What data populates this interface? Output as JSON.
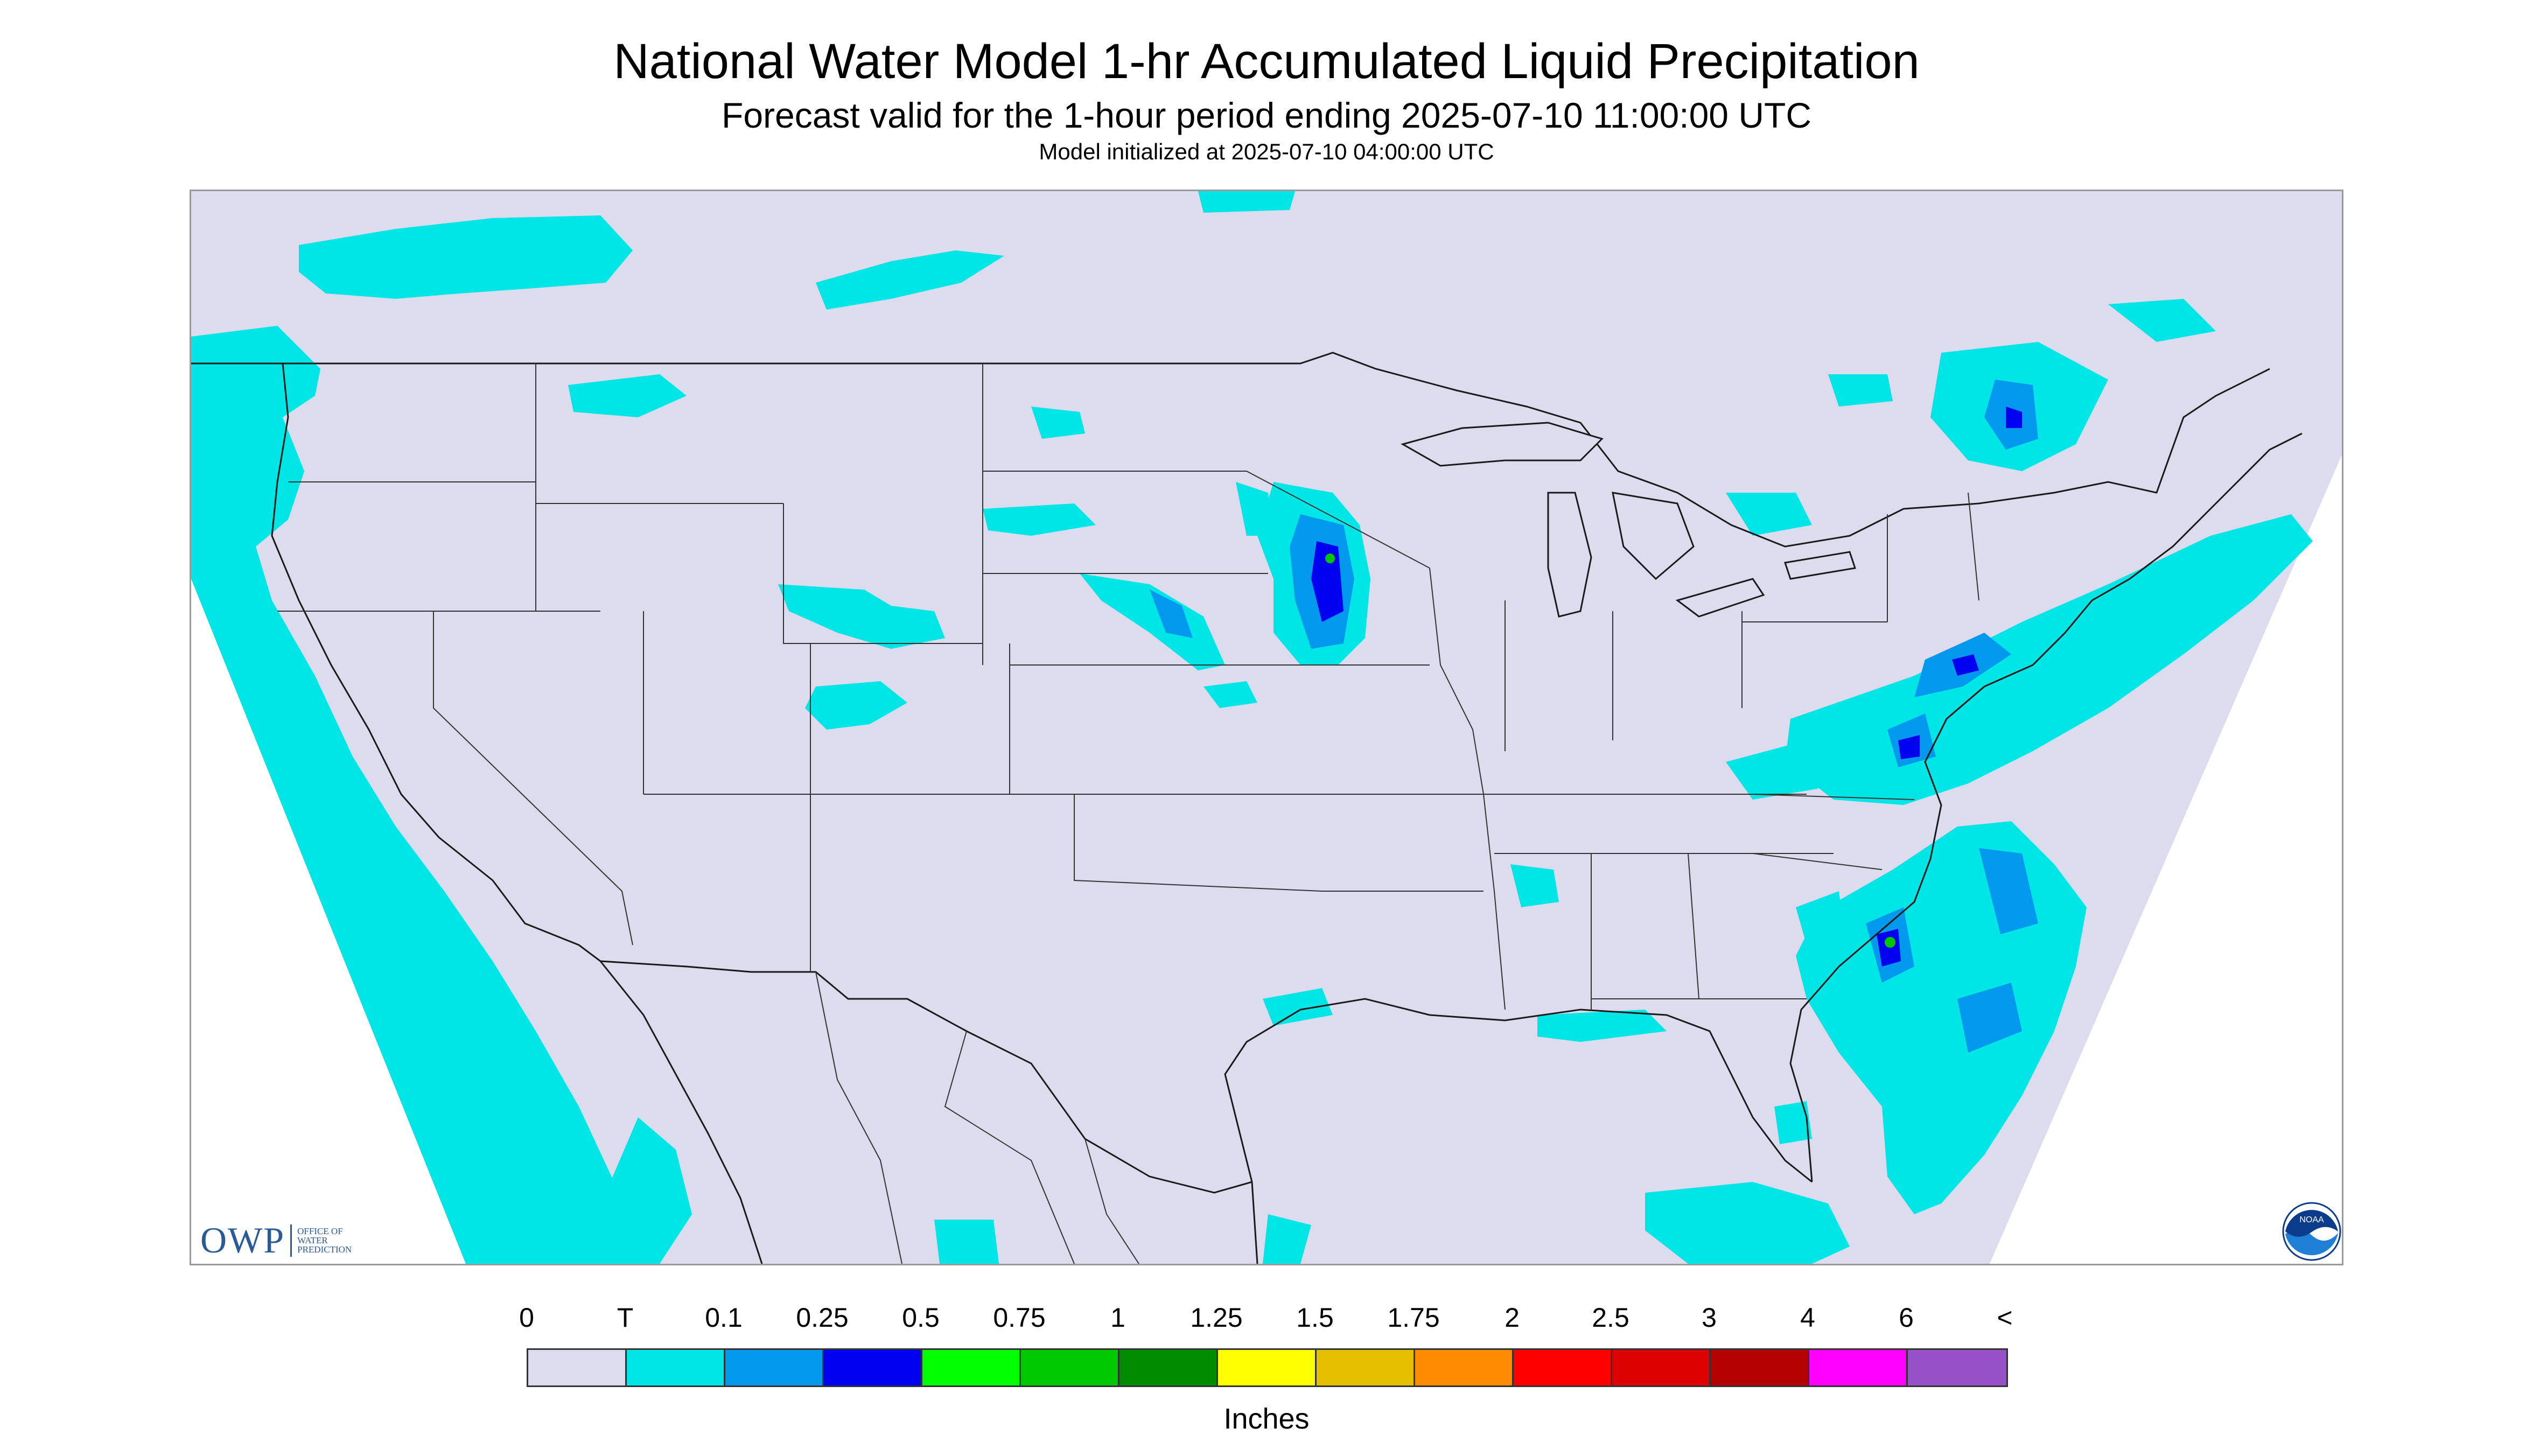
{
  "header": {
    "title": "National Water Model 1-hr Accumulated Liquid Precipitation",
    "subtitle": "Forecast valid for the 1-hour period ending 2025-07-10 11:00:00 UTC",
    "init": "Model initialized at 2025-07-10 04:00:00 UTC"
  },
  "logos": {
    "owp_mark": "OWP",
    "owp_sub": "OFFICE OF WATER PREDICTION",
    "noaa": "NOAA"
  },
  "legend": {
    "labels": [
      "0",
      "T",
      "0.1",
      "0.25",
      "0.5",
      "0.75",
      "1",
      "1.25",
      "1.5",
      "1.75",
      "2",
      "2.5",
      "3",
      "4",
      "6",
      "<"
    ],
    "colors": [
      "#dcdcee",
      "#00e5e5",
      "#0099ee",
      "#0000f0",
      "#00ff00",
      "#00c800",
      "#008c00",
      "#ffff00",
      "#e6be00",
      "#ff8c00",
      "#ff0000",
      "#dc0000",
      "#b40000",
      "#ff00ff",
      "#9650c8"
    ],
    "units": "Inches"
  },
  "map": {
    "background_color": "#dcdcee",
    "outside_color": "#ffffff",
    "trace_color": "#00e5e5",
    "light_color": "#0099ee",
    "moderate_color": "#0000f0",
    "heavy_color": "#00c800"
  }
}
